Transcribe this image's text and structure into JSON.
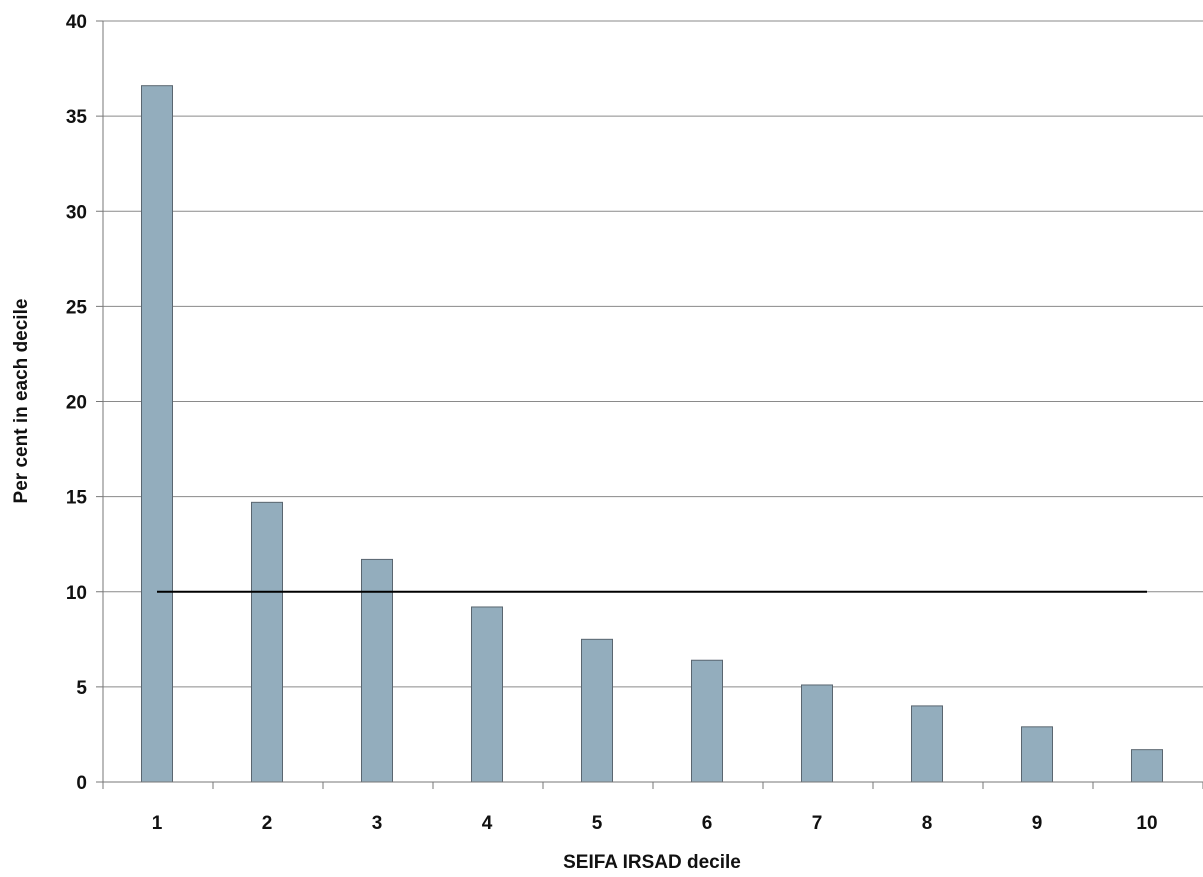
{
  "chart_data": {
    "type": "bar",
    "title": "",
    "xlabel": "SEIFA IRSAD decile",
    "ylabel": "Per cent in each decile",
    "categories": [
      "1",
      "2",
      "3",
      "4",
      "5",
      "6",
      "7",
      "8",
      "9",
      "10"
    ],
    "values": [
      36.6,
      14.7,
      11.7,
      9.2,
      7.5,
      6.4,
      5.1,
      4.0,
      2.9,
      1.7
    ],
    "ylim": [
      0,
      40
    ],
    "yticks": [
      0,
      5,
      10,
      15,
      20,
      25,
      30,
      35,
      40
    ],
    "reference_line": {
      "value": 10,
      "color": "#000000"
    },
    "grid": true,
    "legend": "none",
    "colors": {
      "bar_fill": "#93adbd",
      "bar_stroke": "#5a6670",
      "grid": "#8a8a8a",
      "axis": "#777777"
    }
  }
}
